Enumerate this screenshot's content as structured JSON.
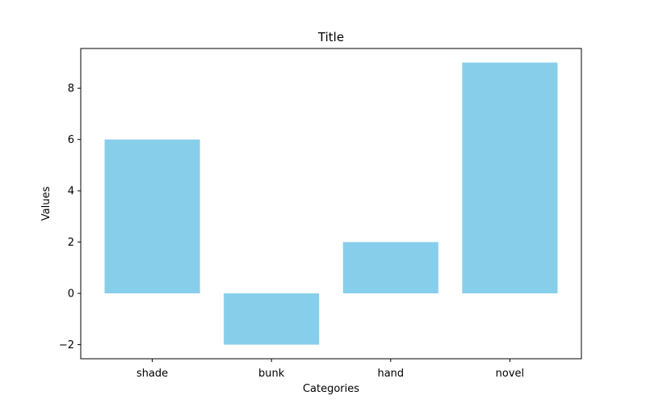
{
  "chart_data": {
    "type": "bar",
    "title": "Title",
    "xlabel": "Categories",
    "ylabel": "Values",
    "categories": [
      "shade",
      "bunk",
      "hand",
      "novel"
    ],
    "values": [
      6,
      -2,
      2,
      9
    ],
    "ylim": [
      -2.55,
      9.55
    ],
    "yticks": [
      -2,
      0,
      2,
      4,
      6,
      8
    ],
    "ytick_labels": [
      "−2",
      "0",
      "2",
      "4",
      "6",
      "8"
    ],
    "bar_color": "#87CEEB",
    "grid": false,
    "legend": "none"
  }
}
